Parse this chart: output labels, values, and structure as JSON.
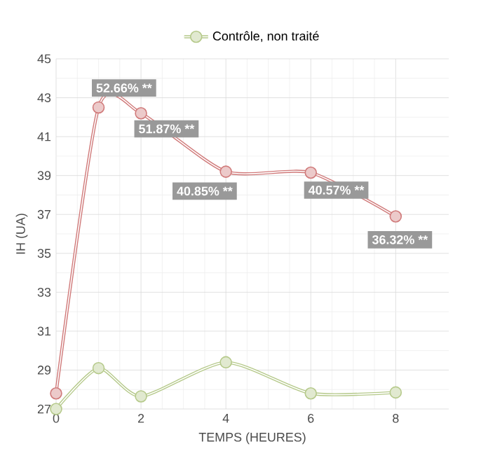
{
  "chart_data": {
    "type": "line",
    "xlabel": "TEMPS (HEURES)",
    "ylabel": "IH (UA)",
    "x": [
      0,
      1,
      2,
      4,
      6,
      8
    ],
    "series": [
      {
        "color": "#d07a7a",
        "values": [
          27.8,
          42.5,
          42.2,
          39.2,
          39.15,
          36.9
        ]
      },
      {
        "name": "Contrôle, non traité",
        "color": "#b5c98a",
        "values": [
          27.0,
          29.1,
          27.65,
          29.4,
          27.8,
          27.85
        ]
      }
    ],
    "xlim": [
      0,
      9.25
    ],
    "ylim": [
      27,
      45
    ],
    "xticks": [
      0,
      2,
      4,
      6,
      8
    ],
    "yticks": [
      27,
      29,
      31,
      33,
      35,
      37,
      39,
      41,
      43,
      45
    ],
    "grid": true,
    "legend": "top",
    "marker": "circle",
    "annotations": [
      {
        "text": "52.66% **",
        "x": 1,
        "y": 42.5
      },
      {
        "text": "51.87% **",
        "x": 2,
        "y": 42.2
      },
      {
        "text": "40.85% **",
        "x": 4,
        "y": 39.2
      },
      {
        "text": "40.57% **",
        "x": 6,
        "y": 39.15
      },
      {
        "text": "36.32% **",
        "x": 8,
        "y": 36.9
      }
    ]
  }
}
